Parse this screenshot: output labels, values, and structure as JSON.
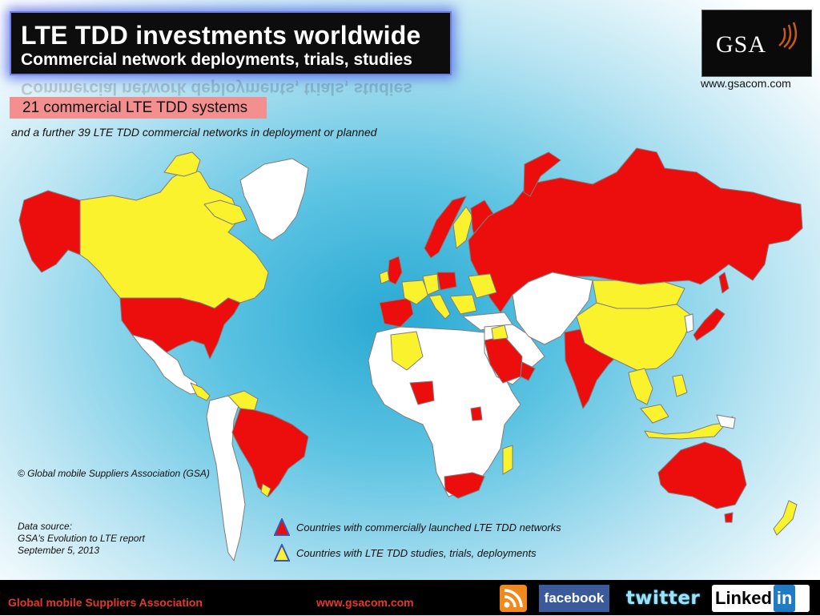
{
  "title": {
    "main": "LTE TDD investments worldwide",
    "sub": "Commercial network deployments, trials, studies"
  },
  "logo": {
    "text": "GSA",
    "url": "www.gsacom.com"
  },
  "summary": {
    "commercial": "21 commercial LTE TDD systems",
    "further": "and a further 39 LTE TDD commercial networks in deployment or planned"
  },
  "copyright": "© Global mobile Suppliers Association (GSA)",
  "datasource": {
    "line1": "Data source:",
    "line2": "GSA's Evolution to LTE report",
    "line3": "September 5, 2013"
  },
  "legend": {
    "launched": {
      "label": "Countries with commercially launched LTE TDD networks",
      "color": "#ec0d0d"
    },
    "trials": {
      "label": "Countries with LTE TDD studies, trials, deployments",
      "color": "#fbf22e"
    }
  },
  "colors": {
    "other_land": "#ffffff",
    "border": "#8a8a8a"
  },
  "footer": {
    "org": "Global mobile Suppliers Association",
    "url": "www.gsacom.com",
    "social": {
      "rss": "rss-icon",
      "facebook": "facebook",
      "twitter": "twitter",
      "linkedin_text": "Linked",
      "linkedin_in": "in"
    }
  }
}
